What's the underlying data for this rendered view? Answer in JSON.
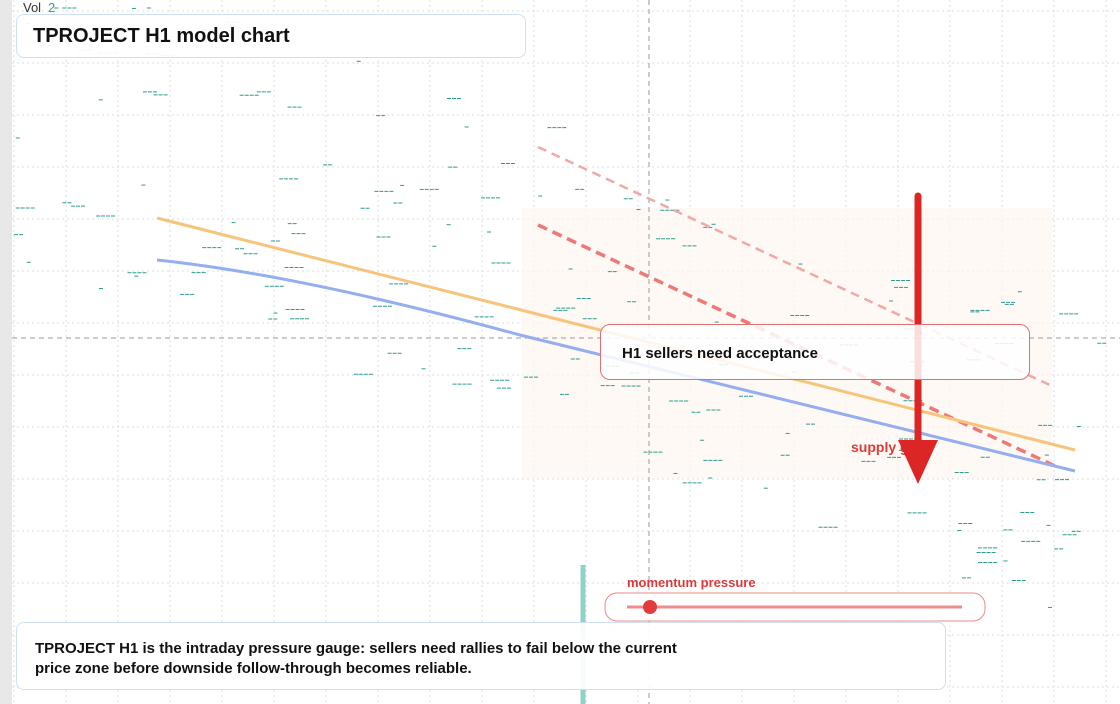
{
  "header": {
    "volume_label": "Vol",
    "volume_value": 2,
    "title": "TPROJECT H1 model chart"
  },
  "annotations": {
    "callout": "H1 sellers need acceptance",
    "zone_label": "supply gate",
    "gauge_label": "momentum pressure"
  },
  "footer": {
    "lines": [
      "TPROJECT H1 is the intraday pressure gauge: sellers need rallies to fail below the current",
      "price zone before downside follow-through becomes reliable."
    ]
  }
}
